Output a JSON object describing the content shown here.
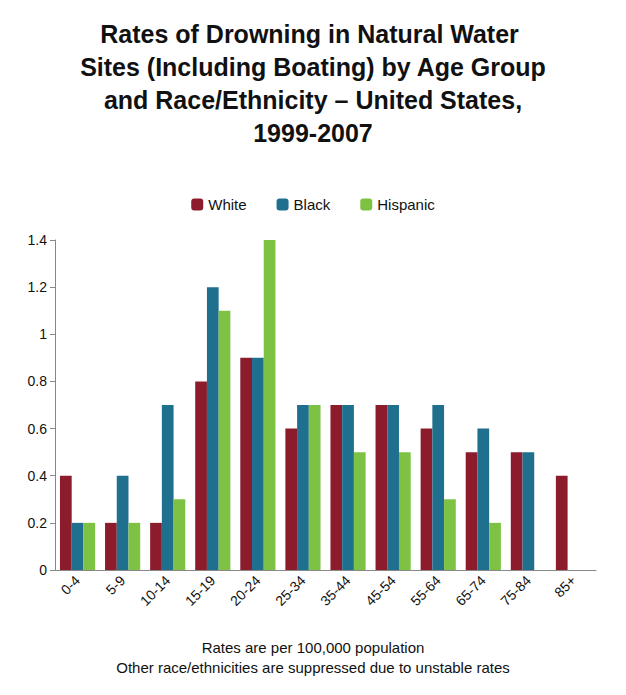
{
  "chart_data": {
    "type": "bar",
    "title": "Rates of Drowning in Natural Water Sites (Including Boating) by Age Group and Race/Ethnicity – United States, 1999-2007",
    "categories": [
      "0-4",
      "5-9",
      "10-14",
      "15-19",
      "20-24",
      "25-34",
      "35-44",
      "45-54",
      "55-64",
      "65-74",
      "75-84",
      "85+"
    ],
    "series": [
      {
        "name": "White",
        "color": "#8c1c2c",
        "values": [
          0.4,
          0.2,
          0.2,
          0.8,
          0.9,
          0.6,
          0.7,
          0.7,
          0.6,
          0.5,
          0.5,
          0.4
        ]
      },
      {
        "name": "Black",
        "color": "#1f6f8f",
        "values": [
          0.2,
          0.4,
          0.7,
          1.2,
          0.9,
          0.7,
          0.7,
          0.7,
          0.7,
          0.6,
          0.5,
          null
        ]
      },
      {
        "name": "Hispanic",
        "color": "#7dc243",
        "values": [
          0.2,
          0.2,
          0.3,
          1.1,
          1.4,
          0.7,
          0.5,
          0.5,
          0.3,
          0.2,
          null,
          null
        ]
      }
    ],
    "ylim": [
      0,
      1.4
    ],
    "yticks": [
      0,
      0.2,
      0.4,
      0.6,
      0.8,
      1,
      1.2,
      1.4
    ],
    "grid": false,
    "legend": "top",
    "annotations": [
      "Rates are per 100,000 population",
      "Other race/ethnicities are suppressed due to unstable rates"
    ]
  }
}
